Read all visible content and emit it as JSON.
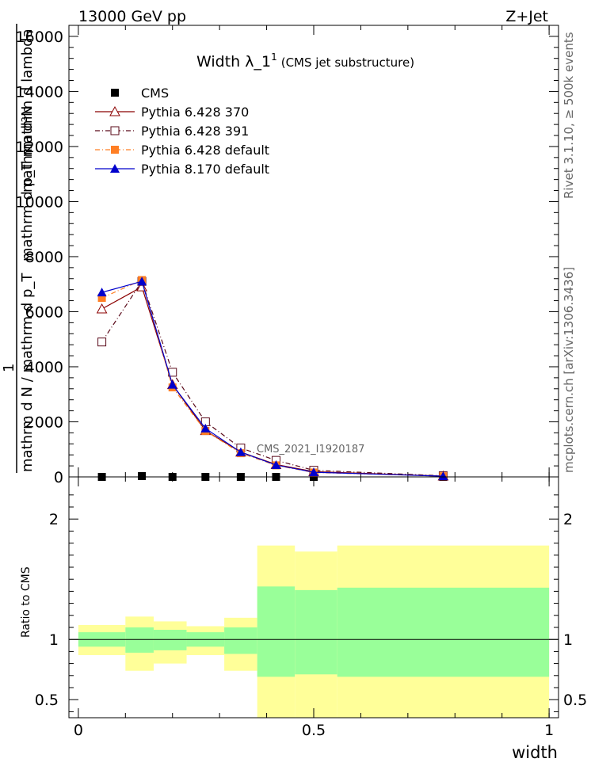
{
  "header": {
    "left": "13000 GeV pp",
    "right": "Z+Jet"
  },
  "side_labels": {
    "rivet": "Rivet 3.1.10, ≥ 500k events",
    "mcplots": "mcplots.cern.ch [arXiv:1306.3436]"
  },
  "chart_data": [
    {
      "type": "line",
      "title": "Width λ_1",
      "title_sup": "1",
      "title_sub": "(CMS jet substructure)",
      "watermark": "CMS_2021_I1920187",
      "ylabel_num": "mathrm d²N",
      "ylabel_den": "mathrm d p_T mathrm d lambda",
      "ylabel_one": "1",
      "ylabel_den_main": "mathrm d N / mathrm d p_T",
      "xlim": [
        -0.02,
        1.02
      ],
      "ylim": [
        0,
        16400
      ],
      "yticks": [
        {
          "v": 0,
          "label": "0"
        },
        {
          "v": 2000,
          "label": "2000"
        },
        {
          "v": 4000,
          "label": "4000"
        },
        {
          "v": 6000,
          "label": "6000"
        },
        {
          "v": 8000,
          "label": "8000"
        },
        {
          "v": 10000,
          "label": "10000"
        },
        {
          "v": 12000,
          "label": "12000"
        },
        {
          "v": 14000,
          "label": "14000"
        },
        {
          "v": 16000,
          "label": "16000"
        }
      ],
      "legend_position": "top-left",
      "x": [
        0.05,
        0.135,
        0.2,
        0.27,
        0.345,
        0.42,
        0.5,
        0.775
      ],
      "series": [
        {
          "name": "CMS",
          "color": "#000000",
          "marker": "square-filled",
          "dash": "none",
          "values": [
            0,
            30,
            0,
            0,
            0,
            0,
            0,
            0
          ]
        },
        {
          "name": "Pythia 6.428 370",
          "color": "#8b0000",
          "marker": "triangle-open",
          "dash": "solid",
          "values": [
            6100,
            6900,
            3350,
            1680,
            900,
            450,
            190,
            30
          ]
        },
        {
          "name": "Pythia 6.428 391",
          "color": "#5a0a1a",
          "marker": "square-open",
          "dash": "dashdot",
          "values": [
            4900,
            7100,
            3800,
            2000,
            1050,
            600,
            240,
            40
          ]
        },
        {
          "name": "Pythia 6.428 default",
          "color": "#ff7f24",
          "marker": "square-filled",
          "dash": "dashdot",
          "values": [
            6500,
            7150,
            3250,
            1670,
            860,
            420,
            160,
            25
          ]
        },
        {
          "name": "Pythia 8.170 default",
          "color": "#0000cc",
          "marker": "triangle-filled",
          "dash": "solid",
          "values": [
            6700,
            7100,
            3350,
            1760,
            900,
            430,
            170,
            25
          ]
        }
      ]
    },
    {
      "type": "area",
      "ylabel": "Ratio to CMS",
      "xlabel": "width",
      "xlim": [
        -0.02,
        1.02
      ],
      "ylim": [
        0.35,
        2.35
      ],
      "yticks": [
        {
          "v": 0.5,
          "label": "0.5"
        },
        {
          "v": 1,
          "label": "1"
        },
        {
          "v": 2,
          "label": "2"
        }
      ],
      "xticks": [
        {
          "v": 0,
          "label": "0"
        },
        {
          "v": 0.5,
          "label": "0.5"
        },
        {
          "v": 1,
          "label": "1"
        }
      ],
      "bins": [
        {
          "x0": 0.0,
          "x1": 0.1,
          "yellow": [
            0.87,
            1.12
          ],
          "green": [
            0.94,
            1.06
          ]
        },
        {
          "x0": 0.1,
          "x1": 0.16,
          "yellow": [
            0.74,
            1.19
          ],
          "green": [
            0.89,
            1.1
          ]
        },
        {
          "x0": 0.16,
          "x1": 0.23,
          "yellow": [
            0.8,
            1.15
          ],
          "green": [
            0.91,
            1.08
          ]
        },
        {
          "x0": 0.23,
          "x1": 0.31,
          "yellow": [
            0.87,
            1.11
          ],
          "green": [
            0.94,
            1.06
          ]
        },
        {
          "x0": 0.31,
          "x1": 0.38,
          "yellow": [
            0.74,
            1.18
          ],
          "green": [
            0.88,
            1.1
          ]
        },
        {
          "x0": 0.38,
          "x1": 0.46,
          "yellow": [
            0.35,
            1.78
          ],
          "green": [
            0.69,
            1.44
          ]
        },
        {
          "x0": 0.46,
          "x1": 0.55,
          "yellow": [
            0.35,
            1.73
          ],
          "green": [
            0.71,
            1.41
          ]
        },
        {
          "x0": 0.55,
          "x1": 1.0,
          "yellow": [
            0.35,
            1.78
          ],
          "green": [
            0.69,
            1.43
          ]
        }
      ],
      "reference_line": 1
    }
  ]
}
